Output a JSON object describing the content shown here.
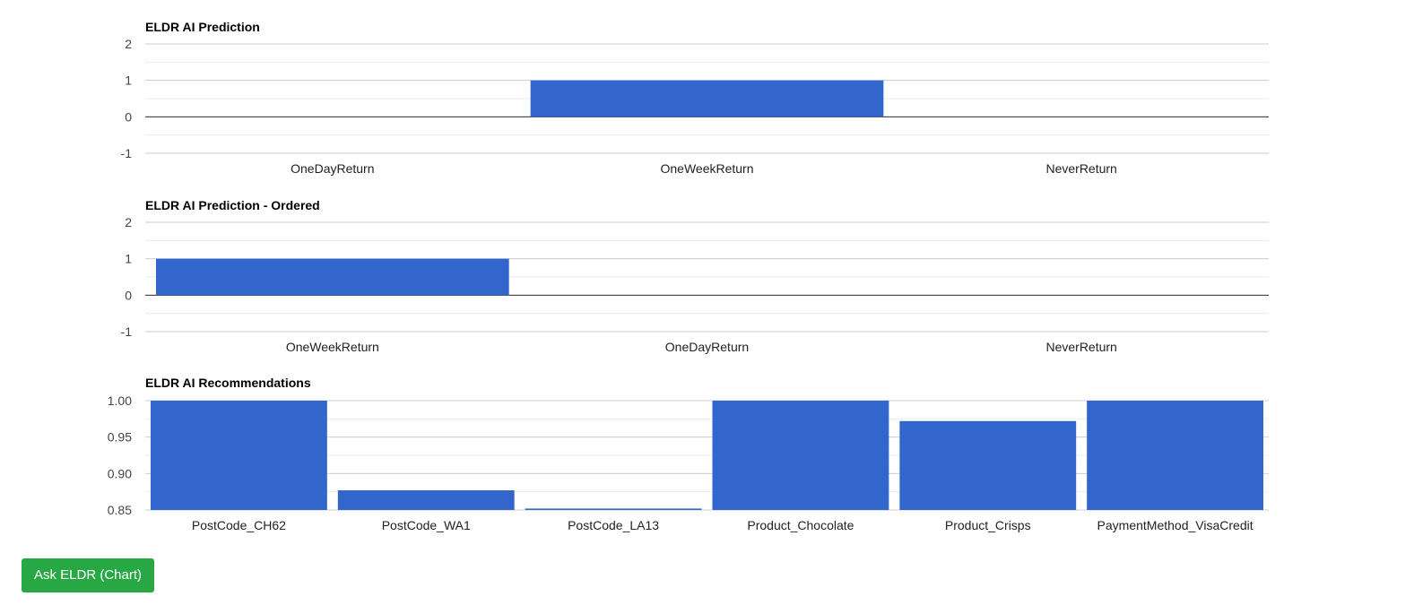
{
  "colors": {
    "bar": "#3366cc",
    "grid_major": "#cccccc",
    "grid_minor": "#ebebeb",
    "baseline": "#333333",
    "button": "#28a745"
  },
  "chart_data": [
    {
      "type": "bar",
      "title": "ELDR AI Prediction",
      "categories": [
        "OneDayReturn",
        "OneWeekReturn",
        "NeverReturn"
      ],
      "values": [
        0,
        1,
        0
      ],
      "ylim": [
        -1,
        2
      ],
      "yticks": [
        "2",
        "1",
        "0",
        "-1"
      ],
      "grid": true,
      "legend": "none"
    },
    {
      "type": "bar",
      "title": "ELDR AI Prediction - Ordered",
      "categories": [
        "OneWeekReturn",
        "OneDayReturn",
        "NeverReturn"
      ],
      "values": [
        1,
        0,
        0
      ],
      "ylim": [
        -1,
        2
      ],
      "yticks": [
        "2",
        "1",
        "0",
        "-1"
      ],
      "grid": true,
      "legend": "none"
    },
    {
      "type": "bar",
      "title": "ELDR AI Recommendations",
      "categories": [
        "PostCode_CH62",
        "PostCode_WA1",
        "PostCode_LA13",
        "Product_Chocolate",
        "Product_Crisps",
        "PaymentMethod_VisaCredit"
      ],
      "values": [
        1.0,
        0.877,
        0.852,
        1.0,
        0.972,
        1.0
      ],
      "ylim": [
        0.85,
        1.0
      ],
      "yticks": [
        "1.00",
        "0.95",
        "0.90",
        "0.85"
      ],
      "grid": true,
      "legend": "none"
    }
  ],
  "actions": {
    "ask_button_label": "Ask ELDR (Chart)"
  }
}
